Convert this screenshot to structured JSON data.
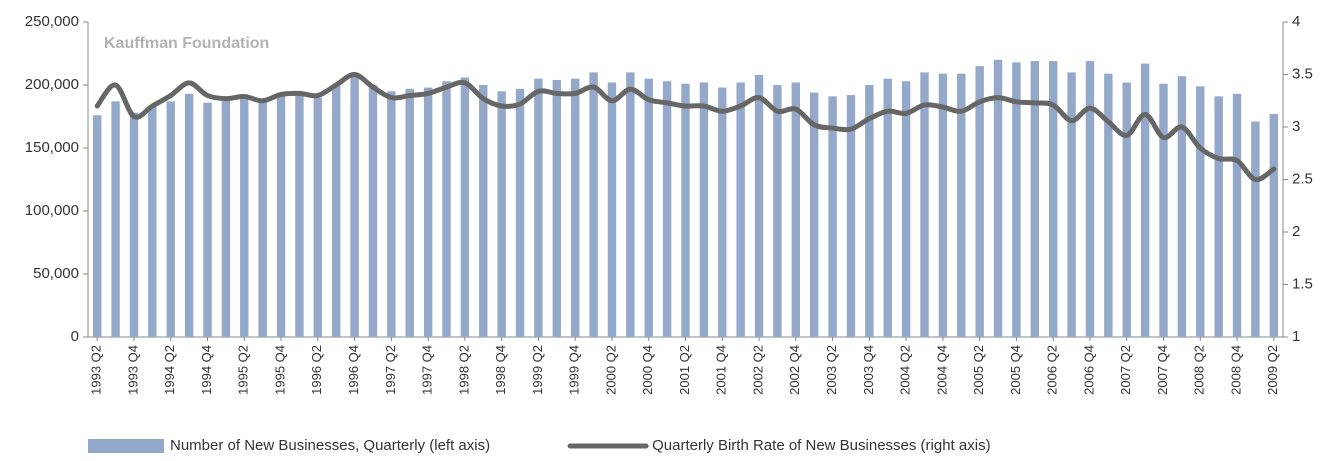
{
  "chart_data": {
    "type": "bar",
    "annotation": "Kauffman Foundation",
    "categories": [
      "1993 Q2",
      null,
      "1993 Q4",
      null,
      "1994 Q2",
      null,
      "1994 Q4",
      null,
      "1995 Q2",
      null,
      "1995 Q4",
      null,
      "1996 Q2",
      null,
      "1996 Q4",
      null,
      "1997 Q2",
      null,
      "1997 Q4",
      null,
      "1998 Q2",
      null,
      "1998 Q4",
      null,
      "1999 Q2",
      null,
      "1999 Q4",
      null,
      "2000 Q2",
      null,
      "2000 Q4",
      null,
      "2001 Q2",
      null,
      "2001 Q4",
      null,
      "2002 Q2",
      null,
      "2002 Q4",
      null,
      "2003 Q2",
      null,
      "2003 Q4",
      null,
      "2004 Q2",
      null,
      "2004 Q4",
      null,
      "2005 Q2",
      null,
      "2005 Q4",
      null,
      "2006 Q2",
      null,
      "2006 Q4",
      null,
      "2007 Q2",
      null,
      "2007 Q4",
      null,
      "2008 Q2",
      null,
      "2008 Q4",
      null,
      "2009 Q2"
    ],
    "series": [
      {
        "name": "Number of New Businesses, Quarterly (left axis)",
        "type": "bar",
        "color": "#94a8c9",
        "values": [
          176000,
          187000,
          178000,
          183000,
          187000,
          193000,
          186000,
          188000,
          190000,
          188000,
          192000,
          193000,
          190000,
          200000,
          209000,
          200000,
          195000,
          197000,
          198000,
          203000,
          206000,
          200000,
          195000,
          197000,
          205000,
          204000,
          205000,
          210000,
          202000,
          210000,
          205000,
          203000,
          201000,
          202000,
          198000,
          202000,
          208000,
          200000,
          202000,
          194000,
          191000,
          192000,
          200000,
          205000,
          203000,
          210000,
          209000,
          209000,
          215000,
          220000,
          218000,
          219000,
          219000,
          210000,
          219000,
          209000,
          202000,
          217000,
          201000,
          207000,
          199000,
          191000,
          193000,
          171000,
          177000
        ]
      },
      {
        "name": "Quarterly Birth Rate of New Businesses (right axis)",
        "type": "line",
        "axis": "y2",
        "color": "#666666",
        "values": [
          3.2,
          3.4,
          3.1,
          3.2,
          3.3,
          3.42,
          3.3,
          3.27,
          3.29,
          3.25,
          3.31,
          3.32,
          3.3,
          3.4,
          3.5,
          3.38,
          3.28,
          3.3,
          3.32,
          3.38,
          3.42,
          3.27,
          3.2,
          3.22,
          3.34,
          3.32,
          3.32,
          3.38,
          3.25,
          3.36,
          3.26,
          3.23,
          3.2,
          3.2,
          3.15,
          3.2,
          3.28,
          3.15,
          3.17,
          3.02,
          2.99,
          2.98,
          3.08,
          3.15,
          3.13,
          3.21,
          3.19,
          3.15,
          3.24,
          3.28,
          3.24,
          3.23,
          3.21,
          3.06,
          3.18,
          3.05,
          2.92,
          3.12,
          2.9,
          3.0,
          2.8,
          2.7,
          2.68,
          2.5,
          2.6
        ]
      }
    ],
    "ylim": [
      0,
      250000
    ],
    "yticks": [
      0,
      {
        "value": 50000,
        "label": "50,000"
      },
      {
        "value": 100000,
        "label": "100,000"
      },
      {
        "value": 150000,
        "label": "150,000"
      },
      {
        "value": 200000,
        "label": "200,000"
      },
      {
        "value": 250000,
        "label": "250,000"
      }
    ],
    "y2lim": [
      1,
      4
    ],
    "y2ticks": [
      1,
      1.5,
      2,
      2.5,
      3,
      3.5,
      4
    ],
    "legend": "bottom"
  }
}
